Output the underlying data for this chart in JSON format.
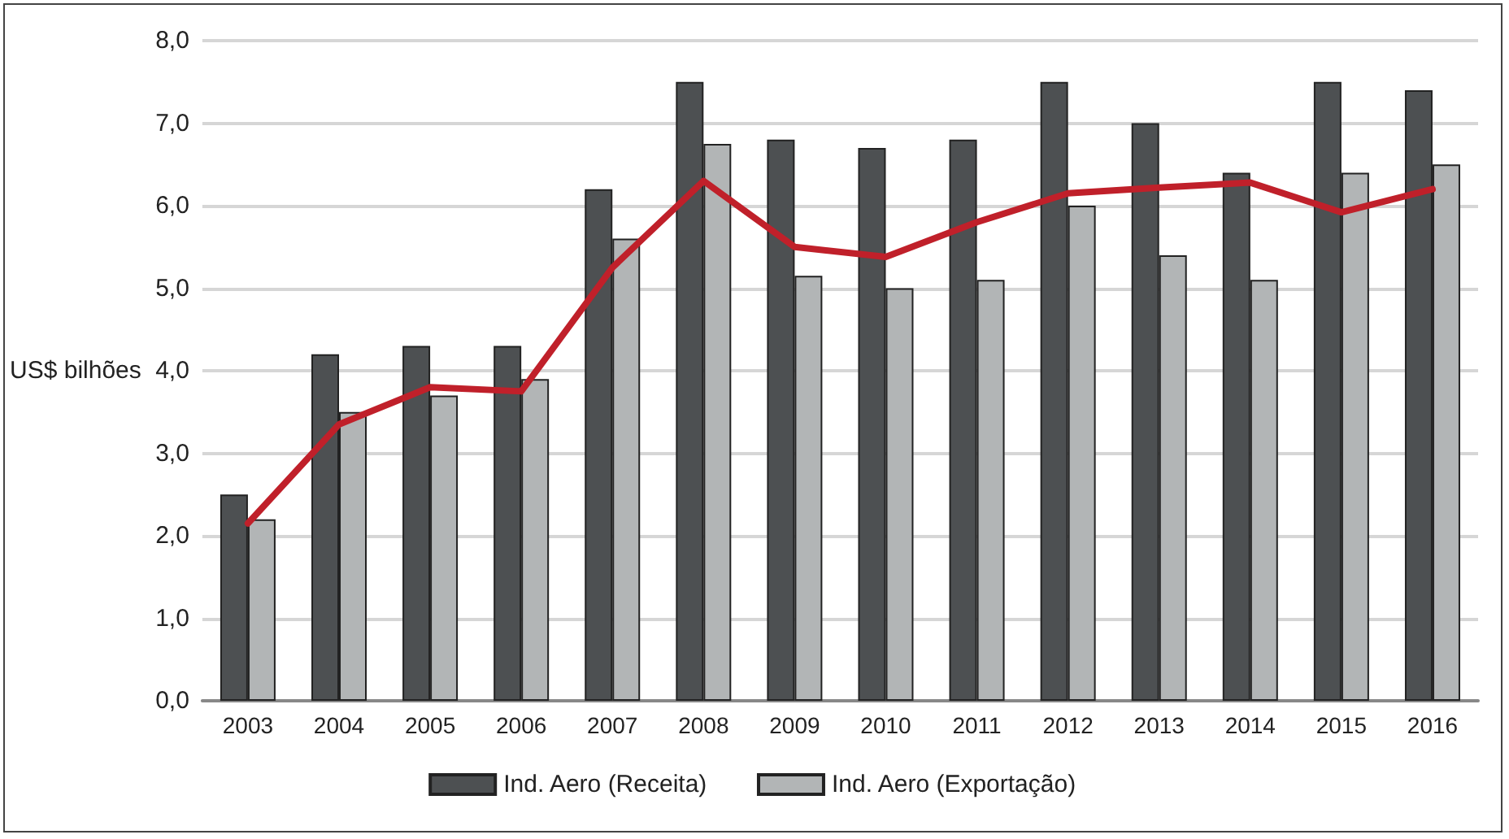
{
  "chart_data": {
    "type": "bar",
    "ylabel": "US$ bilhões",
    "categories": [
      "2003",
      "2004",
      "2005",
      "2006",
      "2007",
      "2008",
      "2009",
      "2010",
      "2011",
      "2012",
      "2013",
      "2014",
      "2015",
      "2016"
    ],
    "series": [
      {
        "name": "Ind. Aero (Receita)",
        "color": "#4d5052",
        "values": [
          2.5,
          4.2,
          4.3,
          4.3,
          6.2,
          7.5,
          6.8,
          6.7,
          6.8,
          7.5,
          7.0,
          6.4,
          7.5,
          7.4
        ]
      },
      {
        "name": "Ind. Aero (Exportação)",
        "color": "#b2b5b6",
        "values": [
          2.2,
          3.5,
          3.7,
          3.9,
          5.6,
          6.75,
          5.15,
          5.0,
          5.1,
          6.0,
          5.4,
          5.1,
          6.4,
          6.5
        ]
      },
      {
        "type": "line",
        "color": "#c0202a",
        "values": [
          2.15,
          3.35,
          3.8,
          3.75,
          5.25,
          6.3,
          5.5,
          5.38,
          5.8,
          6.15,
          6.22,
          6.28,
          5.92,
          6.2
        ]
      }
    ],
    "ylim": [
      0,
      8
    ],
    "yticks": [
      {
        "value": 0,
        "label": "0,0"
      },
      {
        "value": 1,
        "label": "1,0"
      },
      {
        "value": 2,
        "label": "2,0"
      },
      {
        "value": 3,
        "label": "3,0"
      },
      {
        "value": 4,
        "label": "4,0"
      },
      {
        "value": 5,
        "label": "5,0"
      },
      {
        "value": 6,
        "label": "6,0"
      },
      {
        "value": 7,
        "label": "7,0"
      },
      {
        "value": 8,
        "label": "8,0"
      }
    ],
    "grid": "y",
    "legend": "bottom",
    "marker": "none",
    "line_style": "solid"
  }
}
